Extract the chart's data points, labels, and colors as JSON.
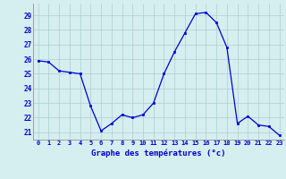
{
  "hours": [
    0,
    1,
    2,
    3,
    4,
    5,
    6,
    7,
    8,
    9,
    10,
    11,
    12,
    13,
    14,
    15,
    16,
    17,
    18,
    19,
    20,
    21,
    22,
    23
  ],
  "temps": [
    25.9,
    25.8,
    25.2,
    25.1,
    25.0,
    22.8,
    21.1,
    21.6,
    22.2,
    22.0,
    22.2,
    23.0,
    25.0,
    26.5,
    27.8,
    29.1,
    29.2,
    28.5,
    26.8,
    21.6,
    22.1,
    21.5,
    21.4,
    20.8
  ],
  "xlim": [
    -0.5,
    23.5
  ],
  "ylim": [
    20.5,
    29.8
  ],
  "yticks": [
    21,
    22,
    23,
    24,
    25,
    26,
    27,
    28,
    29
  ],
  "xtick_labels": [
    "0",
    "1",
    "2",
    "3",
    "4",
    "5",
    "6",
    "7",
    "8",
    "9",
    "10",
    "11",
    "12",
    "13",
    "14",
    "15",
    "16",
    "17",
    "18",
    "19",
    "20",
    "21",
    "22",
    "23"
  ],
  "xlabel": "Graphe des températures (°c)",
  "line_color": "#0000CD",
  "marker_color": "#0000CD",
  "bg_color": "#d5eef0",
  "grid_color": "#aacfcf",
  "axis_label_color": "#0000CD",
  "tick_label_color": "#0000CD"
}
